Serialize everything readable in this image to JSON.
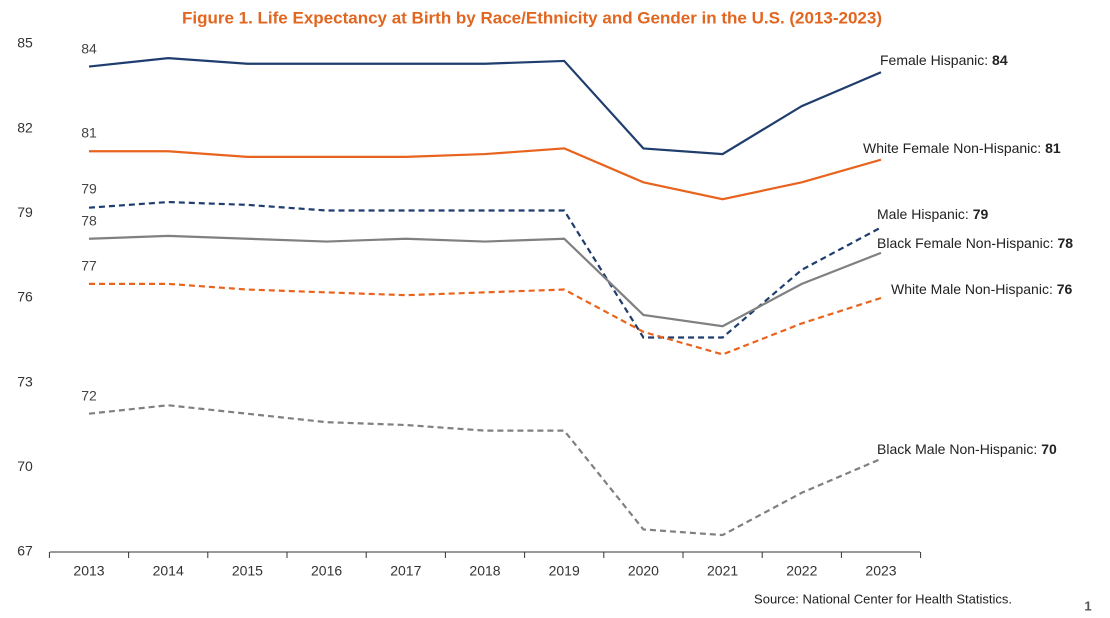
{
  "chart_data": {
    "type": "line",
    "title": "Figure 1. Life Expectancy at Birth by Race/Ethnicity and Gender in the U.S. (2013-2023)",
    "categories": [
      "2013",
      "2014",
      "2015",
      "2016",
      "2017",
      "2018",
      "2019",
      "2020",
      "2021",
      "2022",
      "2023"
    ],
    "ylim": [
      67,
      85
    ],
    "yticks": [
      67,
      70,
      73,
      76,
      79,
      82,
      85
    ],
    "series": [
      {
        "name": "Female Hispanic:",
        "color": "#1f3d6e",
        "dashed": false,
        "start_label": "84",
        "end_label": "84",
        "values": [
          84.2,
          84.5,
          84.3,
          84.3,
          84.3,
          84.3,
          84.4,
          81.3,
          81.1,
          82.8,
          84.0
        ]
      },
      {
        "name": "White Female Non-Hispanic:",
        "color": "#e8641e",
        "dashed": false,
        "start_label": "81",
        "end_label": "81",
        "values": [
          81.2,
          81.2,
          81.0,
          81.0,
          81.0,
          81.1,
          81.3,
          80.1,
          79.5,
          80.1,
          80.9
        ]
      },
      {
        "name": "Male Hispanic:",
        "color": "#1f3d6e",
        "dashed": true,
        "start_label": "79",
        "end_label": "79",
        "values": [
          79.2,
          79.4,
          79.3,
          79.1,
          79.1,
          79.1,
          79.1,
          74.6,
          74.6,
          77.0,
          78.5
        ]
      },
      {
        "name": "Black Female Non-Hispanic:",
        "color": "#808080",
        "dashed": false,
        "start_label": "78",
        "end_label": "78",
        "values": [
          78.1,
          78.2,
          78.1,
          78.0,
          78.1,
          78.0,
          78.1,
          75.4,
          75.0,
          76.5,
          77.6
        ]
      },
      {
        "name": "White Male Non-Hispanic:",
        "color": "#e8641e",
        "dashed": true,
        "start_label": "77",
        "end_label": "76",
        "values": [
          76.5,
          76.5,
          76.3,
          76.2,
          76.1,
          76.2,
          76.3,
          74.8,
          74.0,
          75.1,
          76.0
        ]
      },
      {
        "name": "Black Male Non-Hispanic:",
        "color": "#808080",
        "dashed": true,
        "start_label": "72",
        "end_label": "70",
        "values": [
          71.9,
          72.2,
          71.9,
          71.6,
          71.5,
          71.3,
          71.3,
          67.8,
          67.6,
          69.1,
          70.3
        ]
      }
    ],
    "source": "Source: National Center for Health Statistics.",
    "page_number": "1"
  }
}
